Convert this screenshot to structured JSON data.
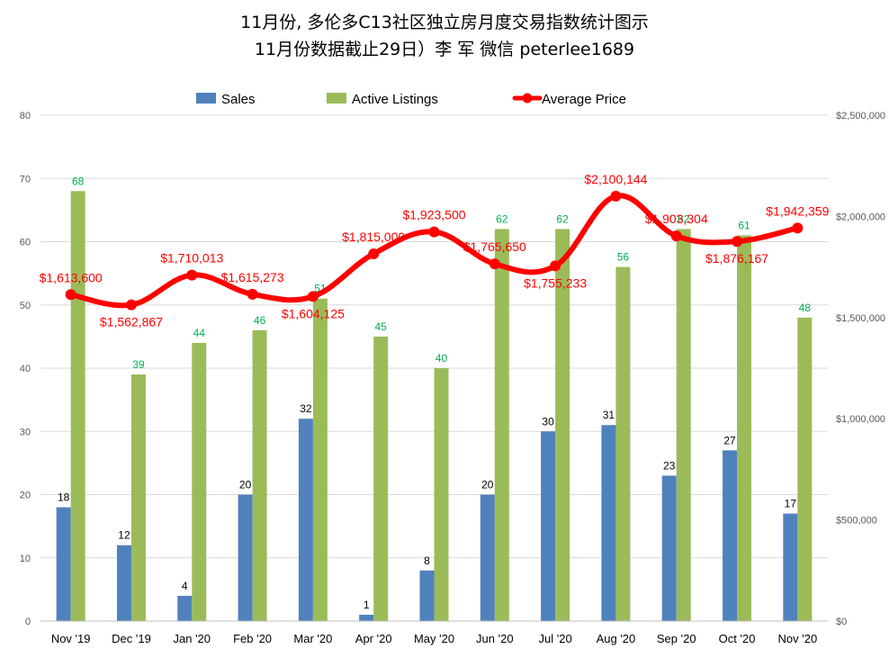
{
  "chart_data": {
    "type": "bar",
    "title": "11月份, 多伦多C13社区独立房月度交易指数统计图示",
    "subtitle": "11月份数据截止29日）李 军  微信  peterlee1689",
    "categories": [
      "Nov '19",
      "Dec '19",
      "Jan '20",
      "Feb '20",
      "Mar '20",
      "Apr '20",
      "May '20",
      "Jun '20",
      "Jul '20",
      "Aug '20",
      "Sep '20",
      "Oct '20",
      "Nov '20"
    ],
    "series": [
      {
        "name": "Sales",
        "type": "bar",
        "axis": "left",
        "color": "#4F81BD",
        "values": [
          18,
          12,
          4,
          20,
          32,
          1,
          8,
          20,
          30,
          31,
          23,
          27,
          17
        ]
      },
      {
        "name": "Active Listings",
        "type": "bar",
        "axis": "left",
        "color": "#9BBB59",
        "label_color": "#00B050",
        "values": [
          68,
          39,
          44,
          46,
          51,
          45,
          40,
          62,
          62,
          56,
          62,
          61,
          48
        ]
      },
      {
        "name": "Average Price",
        "type": "line",
        "axis": "right",
        "color": "#FF0000",
        "values": [
          1613600,
          1562867,
          1710013,
          1615273,
          1604125,
          1815000,
          1923500,
          1765650,
          1755233,
          2100144,
          1903304,
          1876167,
          1942359
        ],
        "labels": [
          "$1,613,600",
          "$1,562,867",
          "$1,710,013",
          "$1,615,273",
          "$1,604,125",
          "$1,815,000",
          "$1,923,500",
          "$1,765,650",
          "$1,755,233",
          "$2,100,144",
          "$1,903,304",
          "$1,876,167",
          "$1,942,359"
        ]
      }
    ],
    "y_left": {
      "range": [
        0,
        80
      ],
      "ticks": [
        "0",
        "10",
        "20",
        "30",
        "40",
        "50",
        "60",
        "70",
        "80"
      ]
    },
    "y_right": {
      "range": [
        0,
        2500000
      ],
      "ticks": [
        "$0",
        "$500,000",
        "$1,000,000",
        "$1,500,000",
        "$2,000,000",
        "$2,500,000"
      ]
    },
    "grid": true,
    "legend_position": "top"
  }
}
